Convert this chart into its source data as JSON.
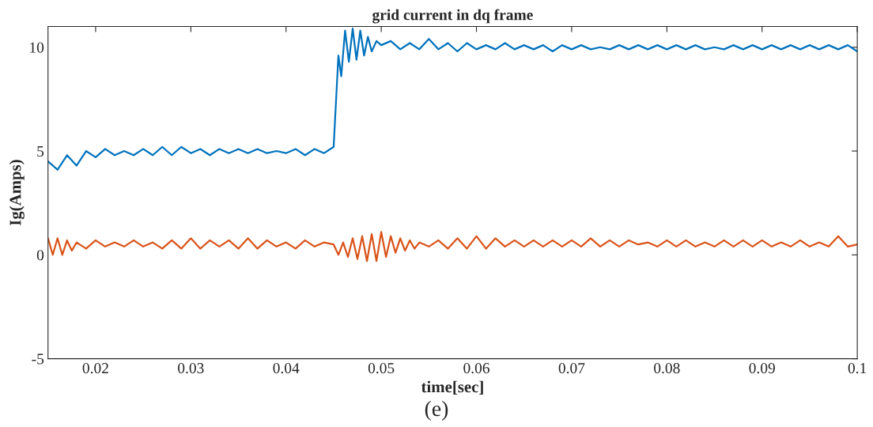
{
  "chart_data": {
    "type": "line",
    "title": "grid current in dq frame",
    "xlabel": "time[sec]",
    "ylabel": "Ig(Amps)",
    "annotations": [
      "(e)"
    ],
    "xlim": [
      0.015,
      0.1
    ],
    "ylim": [
      -5,
      11
    ],
    "xticks": [
      0.02,
      0.03,
      0.04,
      0.05,
      0.06,
      0.07,
      0.08,
      0.09,
      0.1
    ],
    "yticks": [
      -5,
      0,
      5,
      10
    ],
    "grid": false,
    "legend": false,
    "series": [
      {
        "color": "#0072bd",
        "x": [
          0.015,
          0.016,
          0.017,
          0.018,
          0.019,
          0.02,
          0.021,
          0.022,
          0.023,
          0.024,
          0.025,
          0.026,
          0.027,
          0.028,
          0.029,
          0.03,
          0.031,
          0.032,
          0.033,
          0.034,
          0.035,
          0.036,
          0.037,
          0.038,
          0.039,
          0.04,
          0.041,
          0.042,
          0.043,
          0.044,
          0.045,
          0.0455,
          0.0458,
          0.0462,
          0.0466,
          0.047,
          0.0474,
          0.0478,
          0.0482,
          0.0486,
          0.049,
          0.0495,
          0.05,
          0.051,
          0.052,
          0.053,
          0.054,
          0.055,
          0.056,
          0.057,
          0.058,
          0.059,
          0.06,
          0.061,
          0.062,
          0.063,
          0.064,
          0.065,
          0.066,
          0.067,
          0.068,
          0.069,
          0.07,
          0.071,
          0.072,
          0.073,
          0.074,
          0.075,
          0.076,
          0.077,
          0.078,
          0.079,
          0.08,
          0.081,
          0.082,
          0.083,
          0.084,
          0.085,
          0.086,
          0.087,
          0.088,
          0.089,
          0.09,
          0.091,
          0.092,
          0.093,
          0.094,
          0.095,
          0.096,
          0.097,
          0.098,
          0.099,
          0.1
        ],
        "values": [
          4.5,
          4.1,
          4.8,
          4.3,
          5.0,
          4.7,
          5.1,
          4.8,
          5.0,
          4.8,
          5.1,
          4.8,
          5.2,
          4.8,
          5.2,
          4.9,
          5.1,
          4.8,
          5.1,
          4.9,
          5.1,
          4.9,
          5.1,
          4.9,
          5.0,
          4.9,
          5.1,
          4.8,
          5.1,
          4.9,
          5.2,
          9.6,
          8.6,
          10.8,
          9.3,
          10.9,
          9.4,
          10.8,
          9.6,
          10.5,
          9.8,
          10.3,
          10.1,
          10.3,
          9.9,
          10.2,
          9.9,
          10.4,
          9.9,
          10.2,
          9.8,
          10.2,
          9.9,
          10.1,
          9.9,
          10.2,
          9.9,
          10.1,
          9.9,
          10.1,
          9.8,
          10.1,
          9.9,
          10.1,
          9.9,
          10.0,
          9.9,
          10.1,
          9.9,
          10.1,
          9.9,
          10.1,
          9.9,
          10.1,
          9.9,
          10.1,
          9.9,
          10.0,
          9.9,
          10.1,
          9.9,
          10.1,
          9.9,
          10.1,
          9.9,
          10.1,
          9.9,
          10.1,
          9.9,
          10.1,
          9.9,
          10.1,
          9.8
        ]
      },
      {
        "color": "#d95319",
        "x": [
          0.015,
          0.0155,
          0.016,
          0.0165,
          0.017,
          0.0175,
          0.018,
          0.019,
          0.02,
          0.021,
          0.022,
          0.023,
          0.024,
          0.025,
          0.026,
          0.027,
          0.028,
          0.029,
          0.03,
          0.031,
          0.032,
          0.033,
          0.034,
          0.035,
          0.036,
          0.037,
          0.038,
          0.039,
          0.04,
          0.041,
          0.042,
          0.043,
          0.044,
          0.045,
          0.0455,
          0.046,
          0.0465,
          0.047,
          0.0475,
          0.048,
          0.0485,
          0.049,
          0.0495,
          0.05,
          0.0505,
          0.051,
          0.0515,
          0.052,
          0.0525,
          0.053,
          0.0535,
          0.054,
          0.055,
          0.056,
          0.057,
          0.058,
          0.059,
          0.06,
          0.061,
          0.062,
          0.063,
          0.064,
          0.065,
          0.066,
          0.067,
          0.068,
          0.069,
          0.07,
          0.071,
          0.072,
          0.073,
          0.074,
          0.075,
          0.076,
          0.077,
          0.078,
          0.079,
          0.08,
          0.081,
          0.082,
          0.083,
          0.084,
          0.085,
          0.086,
          0.087,
          0.088,
          0.089,
          0.09,
          0.091,
          0.092,
          0.093,
          0.094,
          0.095,
          0.096,
          0.097,
          0.098,
          0.099,
          0.1
        ],
        "values": [
          0.8,
          0.0,
          0.8,
          0.0,
          0.7,
          0.2,
          0.6,
          0.3,
          0.7,
          0.4,
          0.6,
          0.4,
          0.7,
          0.4,
          0.6,
          0.3,
          0.7,
          0.3,
          0.8,
          0.3,
          0.7,
          0.4,
          0.7,
          0.3,
          0.8,
          0.3,
          0.7,
          0.4,
          0.6,
          0.3,
          0.7,
          0.4,
          0.6,
          0.5,
          0.0,
          0.6,
          -0.1,
          0.8,
          -0.2,
          0.9,
          -0.3,
          1.0,
          -0.3,
          1.1,
          -0.1,
          0.9,
          0.1,
          0.8,
          0.2,
          0.7,
          0.3,
          0.6,
          0.4,
          0.7,
          0.3,
          0.8,
          0.3,
          0.9,
          0.3,
          0.8,
          0.4,
          0.7,
          0.4,
          0.7,
          0.4,
          0.7,
          0.4,
          0.7,
          0.4,
          0.8,
          0.4,
          0.7,
          0.4,
          0.7,
          0.5,
          0.6,
          0.4,
          0.7,
          0.4,
          0.7,
          0.4,
          0.6,
          0.4,
          0.7,
          0.4,
          0.7,
          0.4,
          0.7,
          0.4,
          0.6,
          0.4,
          0.7,
          0.4,
          0.6,
          0.4,
          0.9,
          0.4,
          0.5
        ]
      }
    ]
  }
}
